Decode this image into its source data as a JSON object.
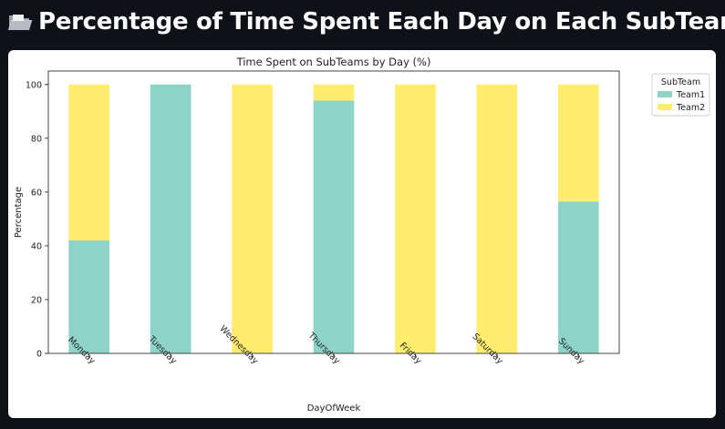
{
  "header": {
    "icon": "folder-icon",
    "title": "Percentage of Time Spent Each Day on Each SubTeam"
  },
  "chart_data": {
    "type": "bar",
    "stacked": true,
    "title": "Time Spent on SubTeams by Day (%)",
    "xlabel": "DayOfWeek",
    "ylabel": "Percentage",
    "ylim": [
      0,
      105
    ],
    "yticks": [
      0,
      20,
      40,
      60,
      80,
      100
    ],
    "categories": [
      "Monday",
      "Tuesday",
      "Wednesday",
      "Thursday",
      "Friday",
      "Saturday",
      "Sunday"
    ],
    "series": [
      {
        "name": "Team1",
        "color": "#8dd3c7",
        "values": [
          42,
          100,
          0,
          94,
          0,
          0,
          56.5
        ]
      },
      {
        "name": "Team2",
        "color": "#ffed6f",
        "values": [
          58,
          0,
          100,
          6,
          100,
          100,
          43.5
        ]
      }
    ],
    "legend": {
      "title": "SubTeam",
      "placement": "outside-top-right"
    },
    "grid": false
  }
}
